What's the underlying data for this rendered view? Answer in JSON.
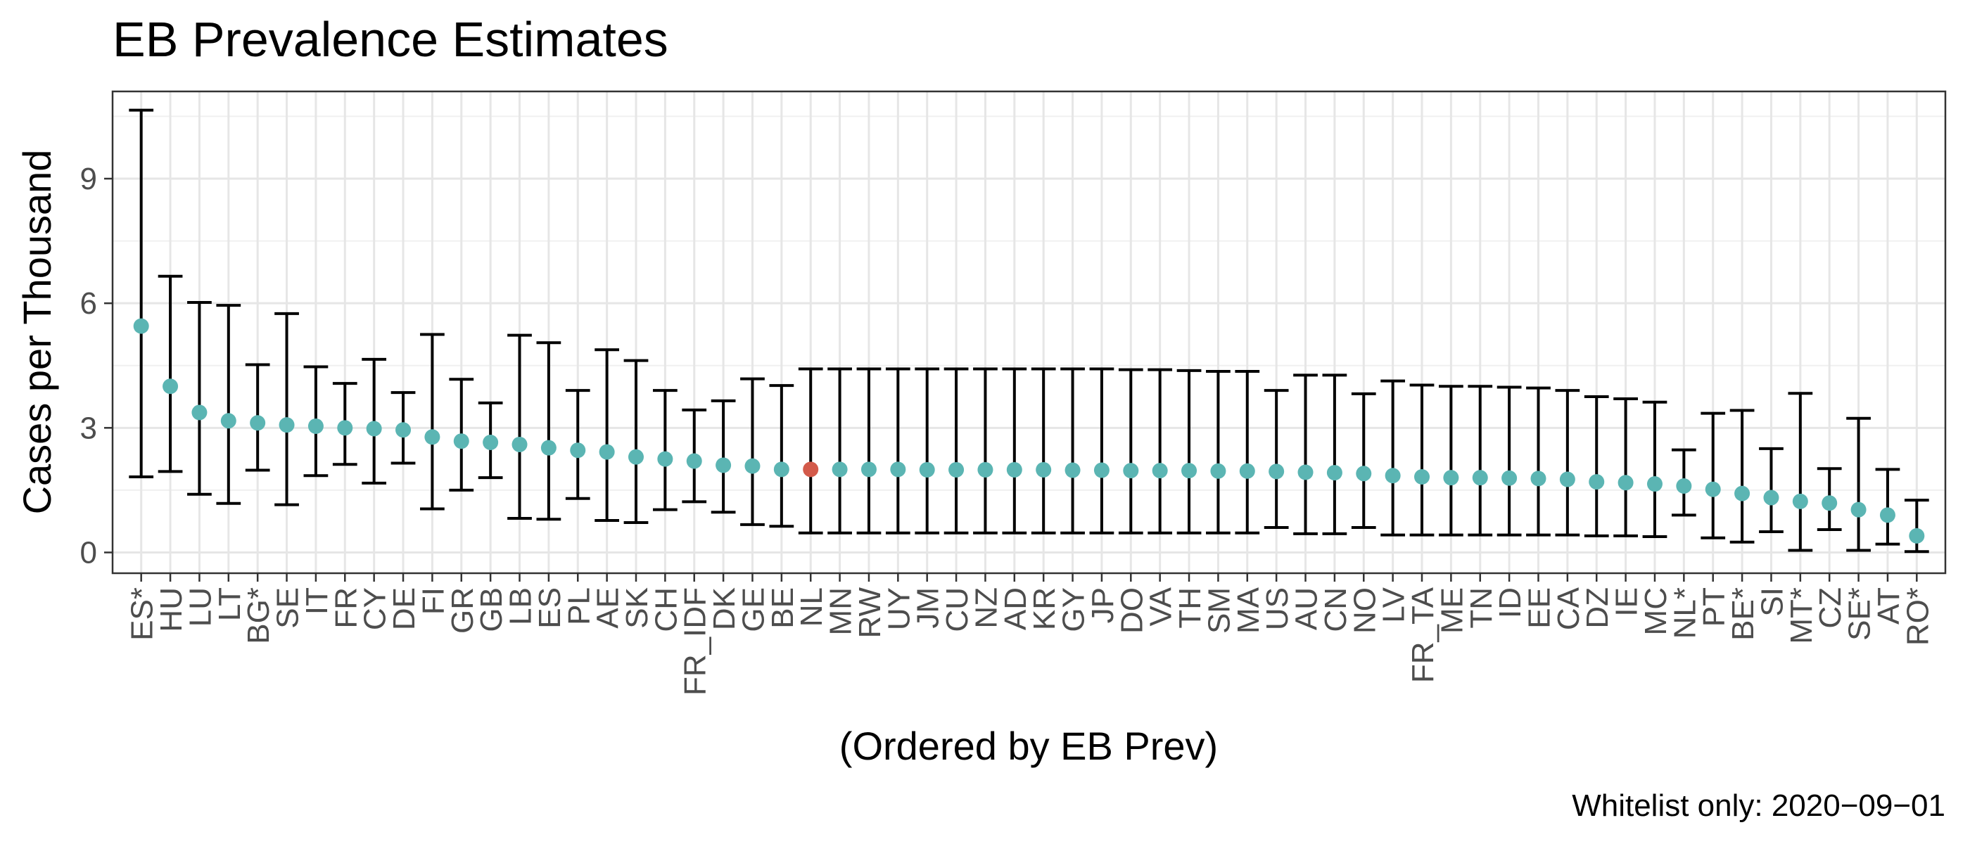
{
  "chart_data": {
    "type": "scatter",
    "title": "EB Prevalence Estimates",
    "xlabel": "(Ordered by EB Prev)",
    "ylabel": "Cases per Thousand",
    "caption": "Whitelist only: 2020−09−01",
    "ylim": [
      -0.5,
      11.1
    ],
    "yticks": [
      0,
      3,
      6,
      9
    ],
    "grid": true,
    "colors": {
      "default": "#5bb5b3",
      "highlight": "#d35a4a",
      "errorbar": "#000000"
    },
    "categories": [
      "ES*",
      "HU",
      "LU",
      "LT",
      "BG*",
      "SE",
      "IT",
      "FR",
      "CY",
      "DE",
      "FI",
      "GR",
      "GB",
      "LB",
      "ES",
      "PL",
      "AE",
      "SK",
      "CH",
      "FR_IDF",
      "DK",
      "GE",
      "BE",
      "NL",
      "MN",
      "RW",
      "UY",
      "JM",
      "CU",
      "NZ",
      "AD",
      "KR",
      "GY",
      "JP",
      "DO",
      "VA",
      "TH",
      "SM",
      "MA",
      "US",
      "AU",
      "CN",
      "NO",
      "LV",
      "FR_TA",
      "ME",
      "TN",
      "ID",
      "EE",
      "CA",
      "DZ",
      "IE",
      "MC",
      "NL*",
      "PT",
      "BE*",
      "SI",
      "MT*",
      "CZ",
      "SE*",
      "AT",
      "RO*"
    ],
    "values": [
      5.45,
      4.0,
      3.37,
      3.17,
      3.12,
      3.07,
      3.04,
      3.0,
      2.98,
      2.95,
      2.78,
      2.68,
      2.65,
      2.6,
      2.52,
      2.46,
      2.42,
      2.3,
      2.25,
      2.2,
      2.1,
      2.08,
      2.0,
      2.0,
      2.0,
      2.0,
      2.0,
      1.99,
      1.99,
      1.99,
      1.99,
      1.99,
      1.98,
      1.98,
      1.97,
      1.97,
      1.97,
      1.96,
      1.96,
      1.95,
      1.93,
      1.92,
      1.9,
      1.85,
      1.82,
      1.8,
      1.8,
      1.79,
      1.78,
      1.76,
      1.7,
      1.68,
      1.65,
      1.6,
      1.52,
      1.42,
      1.32,
      1.23,
      1.19,
      1.03,
      0.9,
      0.4
    ],
    "lower": [
      1.82,
      1.95,
      1.4,
      1.18,
      1.98,
      1.15,
      1.85,
      2.12,
      1.67,
      2.15,
      1.05,
      1.5,
      1.8,
      0.82,
      0.8,
      1.3,
      0.77,
      0.72,
      1.03,
      1.22,
      0.97,
      0.67,
      0.63,
      0.47,
      0.47,
      0.47,
      0.47,
      0.47,
      0.47,
      0.47,
      0.47,
      0.47,
      0.47,
      0.47,
      0.47,
      0.47,
      0.47,
      0.47,
      0.47,
      0.6,
      0.45,
      0.45,
      0.6,
      0.42,
      0.42,
      0.42,
      0.42,
      0.42,
      0.42,
      0.42,
      0.4,
      0.4,
      0.38,
      0.9,
      0.35,
      0.25,
      0.5,
      0.05,
      0.55,
      0.05,
      0.2,
      0.02
    ],
    "upper": [
      10.65,
      6.65,
      6.02,
      5.95,
      4.52,
      5.75,
      4.47,
      4.07,
      4.65,
      3.85,
      5.25,
      4.17,
      3.6,
      5.23,
      5.05,
      3.9,
      4.88,
      4.62,
      3.9,
      3.43,
      3.65,
      4.18,
      4.02,
      4.42,
      4.42,
      4.42,
      4.42,
      4.42,
      4.42,
      4.42,
      4.42,
      4.42,
      4.42,
      4.42,
      4.4,
      4.4,
      4.38,
      4.36,
      4.36,
      3.9,
      4.27,
      4.27,
      3.82,
      4.13,
      4.03,
      4.0,
      4.0,
      3.98,
      3.96,
      3.9,
      3.75,
      3.7,
      3.62,
      2.47,
      3.35,
      3.42,
      2.5,
      3.83,
      2.02,
      3.23,
      2.0,
      1.26
    ],
    "highlighted": [
      "NL"
    ]
  }
}
